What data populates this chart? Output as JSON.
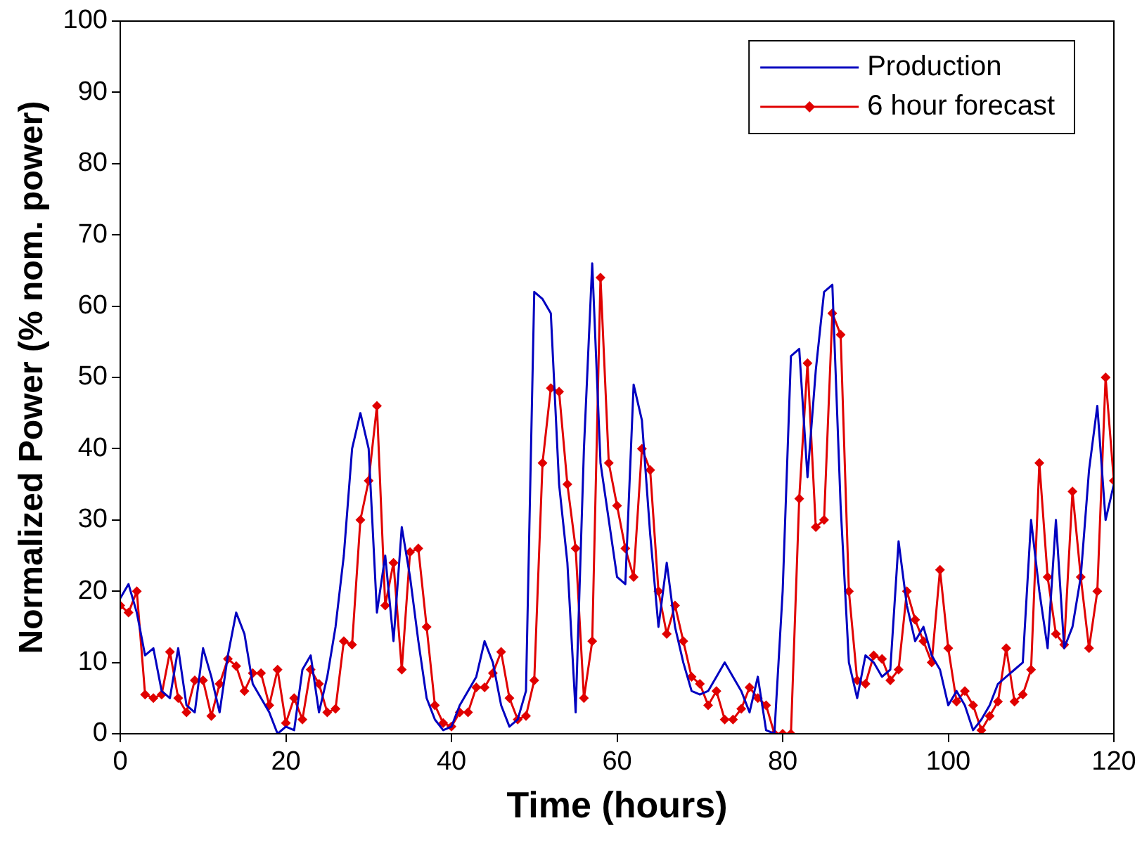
{
  "chart_data": {
    "type": "line",
    "xlabel": "Time (hours)",
    "ylabel": "Normalized Power (% nom. power)",
    "x": [
      0,
      1,
      2,
      3,
      4,
      5,
      6,
      7,
      8,
      9,
      10,
      11,
      12,
      13,
      14,
      15,
      16,
      17,
      18,
      19,
      20,
      21,
      22,
      23,
      24,
      25,
      26,
      27,
      28,
      29,
      30,
      31,
      32,
      33,
      34,
      35,
      36,
      37,
      38,
      39,
      40,
      41,
      42,
      43,
      44,
      45,
      46,
      47,
      48,
      49,
      50,
      51,
      52,
      53,
      54,
      55,
      56,
      57,
      58,
      59,
      60,
      61,
      62,
      63,
      64,
      65,
      66,
      67,
      68,
      69,
      70,
      71,
      72,
      73,
      74,
      75,
      76,
      77,
      78,
      79,
      80,
      81,
      82,
      83,
      84,
      85,
      86,
      87,
      88,
      89,
      90,
      91,
      92,
      93,
      94,
      95,
      96,
      97,
      98,
      99,
      100,
      101,
      102,
      103,
      104,
      105,
      106,
      107,
      108,
      109,
      110,
      111,
      112,
      113,
      114,
      115,
      116,
      117,
      118,
      119,
      120
    ],
    "series": [
      {
        "name": "Production",
        "color": "#0000c0",
        "marker": "none",
        "values": [
          19,
          21,
          17,
          11,
          12,
          6,
          5,
          12,
          4,
          3,
          12,
          8,
          3,
          11,
          17,
          14,
          7,
          5,
          3,
          0,
          1,
          0.5,
          9,
          11,
          3,
          8,
          15,
          25,
          40,
          45,
          40,
          17,
          25,
          13,
          29,
          22,
          13,
          5,
          2,
          0.5,
          1,
          4,
          6,
          8,
          13,
          10,
          4,
          1,
          2,
          6,
          62,
          61,
          59,
          35,
          24,
          3,
          40,
          66,
          38,
          30,
          22,
          21,
          49,
          44,
          28,
          15,
          24,
          15,
          10,
          6,
          5.5,
          6,
          8,
          10,
          8,
          6,
          3,
          8,
          0.5,
          0,
          20,
          53,
          54,
          36,
          51,
          62,
          63,
          32,
          10,
          5,
          11,
          10,
          8,
          9,
          27,
          18,
          13,
          15,
          11,
          9,
          4,
          6,
          4,
          0.5,
          2,
          4,
          7,
          8,
          9,
          10,
          30,
          20,
          12,
          30,
          12,
          15,
          22,
          37,
          46,
          30,
          35
        ]
      },
      {
        "name": "6 hour forecast",
        "color": "#e00000",
        "marker": "diamond",
        "values": [
          18,
          17,
          20,
          5.5,
          5,
          5.5,
          11.5,
          5,
          3,
          7.5,
          7.5,
          2.5,
          7,
          10.5,
          9.5,
          6,
          8.5,
          8.5,
          4,
          9,
          1.5,
          5,
          2,
          9,
          7,
          3,
          3.5,
          13,
          12.5,
          30,
          35.5,
          46,
          18,
          24,
          9,
          25.5,
          26,
          15,
          4,
          1.5,
          1,
          3,
          3,
          6.5,
          6.5,
          8.5,
          11.5,
          5,
          2,
          2.5,
          7.5,
          38,
          48.5,
          48,
          35,
          26,
          5,
          13,
          64,
          38,
          32,
          26,
          22,
          40,
          37,
          20,
          14,
          18,
          13,
          8,
          7,
          4,
          6,
          2,
          2,
          3.5,
          6.5,
          5,
          4,
          0,
          0,
          0,
          33,
          52,
          29,
          30,
          59,
          56,
          20,
          7.5,
          7,
          11,
          10.5,
          7.5,
          9,
          20,
          16,
          13,
          10,
          23,
          12,
          4.5,
          6,
          4,
          0.5,
          2.5,
          4.5,
          12,
          4.5,
          5.5,
          9,
          38,
          22,
          14,
          12.5,
          34,
          22,
          12,
          20,
          50,
          35.5
        ]
      }
    ],
    "xlim": [
      0,
      120
    ],
    "xticks": [
      0,
      20,
      40,
      60,
      80,
      100,
      120
    ],
    "ylim": [
      0,
      100
    ],
    "yticks": [
      0,
      10,
      20,
      30,
      40,
      50,
      60,
      70,
      80,
      90,
      100
    ],
    "grid": false,
    "legend": "top right",
    "line_style": "solid"
  }
}
